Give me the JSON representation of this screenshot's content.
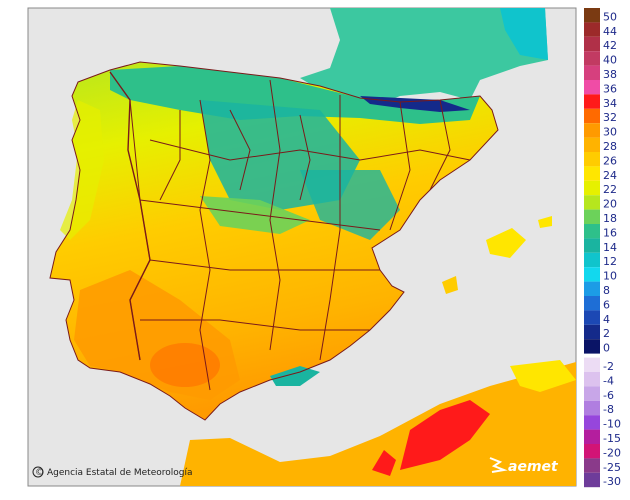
{
  "legend": {
    "positive_scale": [
      {
        "label": "50",
        "color": "#7a3a12"
      },
      {
        "label": "44",
        "color": "#9c2a2a"
      },
      {
        "label": "42",
        "color": "#b03048"
      },
      {
        "label": "40",
        "color": "#c23a62"
      },
      {
        "label": "38",
        "color": "#d6407e"
      },
      {
        "label": "36",
        "color": "#f04ca6"
      },
      {
        "label": "34",
        "color": "#ff1a1a"
      },
      {
        "label": "32",
        "color": "#ff6a00"
      },
      {
        "label": "30",
        "color": "#ff9a00"
      },
      {
        "label": "28",
        "color": "#ffb300"
      },
      {
        "label": "26",
        "color": "#ffcc00"
      },
      {
        "label": "24",
        "color": "#ffe600"
      },
      {
        "label": "22",
        "color": "#e6f000"
      },
      {
        "label": "20",
        "color": "#b6e61e"
      },
      {
        "label": "18",
        "color": "#6cd25a"
      },
      {
        "label": "16",
        "color": "#2ec08a"
      },
      {
        "label": "14",
        "color": "#1ab4a0"
      },
      {
        "label": "12",
        "color": "#10c4cc"
      },
      {
        "label": "10",
        "color": "#12d8ee"
      },
      {
        "label": "8",
        "color": "#1c9ce6"
      },
      {
        "label": "6",
        "color": "#1e6ed6"
      },
      {
        "label": "4",
        "color": "#1c48b4"
      },
      {
        "label": "2",
        "color": "#142a8a"
      },
      {
        "label": "0",
        "color": "#0a1466"
      }
    ],
    "negative_scale": [
      {
        "label": "-2",
        "color": "#ecdcf4"
      },
      {
        "label": "-4",
        "color": "#dcc2ee"
      },
      {
        "label": "-6",
        "color": "#c8a6e8"
      },
      {
        "label": "-8",
        "color": "#b07ee0"
      },
      {
        "label": "-10",
        "color": "#9646dc"
      },
      {
        "label": "-15",
        "color": "#b41e9e"
      },
      {
        "label": "-20",
        "color": "#d21476"
      },
      {
        "label": "-25",
        "color": "#8a3a8a"
      },
      {
        "label": "-30",
        "color": "#6e3c9a"
      }
    ]
  },
  "credit": {
    "text": "Agencia Estatal de Meteorología",
    "symbol": "©"
  },
  "logo": {
    "text": "aemet"
  },
  "colors": {
    "sea": "#e6e6e6",
    "land_outside": "#c8c8c8",
    "boundary": "#7a1a1a"
  }
}
